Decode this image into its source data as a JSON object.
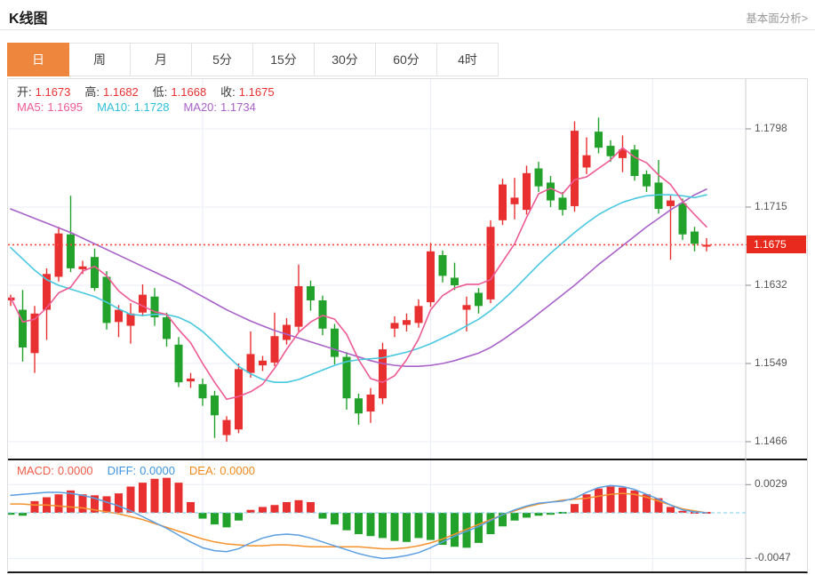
{
  "header": {
    "title": "K线图",
    "link_label": "基本面分析>"
  },
  "tabs": {
    "items": [
      "日",
      "周",
      "月",
      "5分",
      "15分",
      "30分",
      "60分",
      "4时"
    ],
    "active_index": 0
  },
  "info": {
    "ohlc": [
      {
        "label": "开:",
        "value": "1.1673"
      },
      {
        "label": "高:",
        "value": "1.1682"
      },
      {
        "label": "低:",
        "value": "1.1668"
      },
      {
        "label": "收:",
        "value": "1.1675"
      }
    ],
    "ma": [
      {
        "label": "MA5:",
        "value": "1.1695",
        "color": "#ee5a94"
      },
      {
        "label": "MA10:",
        "value": "1.1728",
        "color": "#2ec0da"
      },
      {
        "label": "MA20:",
        "value": "1.1734",
        "color": "#a862c8"
      }
    ],
    "macd": [
      {
        "label": "MACD:",
        "value": "0.0000",
        "color": "#f25c4a"
      },
      {
        "label": "DIFF:",
        "value": "0.0000",
        "color": "#3f94e0"
      },
      {
        "label": "DEA:",
        "value": "0.0000",
        "color": "#f08a1d"
      }
    ]
  },
  "colors": {
    "up": "#e93030",
    "down": "#22a12b",
    "ma5": "#ee5a94",
    "ma10": "#49c8e0",
    "ma20": "#a862c8",
    "diff": "#5b9fe0",
    "dea": "#f5922e",
    "tab_accent": "#ef863e",
    "price_line": "#fa463c",
    "badge_bg": "#e8291d",
    "grid": "#e9eef6",
    "axis_border": "#cccccc",
    "zero_dash": "#7fcbe8",
    "separator": "#151515"
  },
  "chart_data": {
    "type": "candlestick+macd",
    "title": "K线图",
    "period_selected": "日",
    "price_axis": {
      "ticks": [
        1.1798,
        1.1715,
        1.1632,
        1.1549,
        1.1466
      ],
      "current_price": 1.1675
    },
    "macd_axis": {
      "ticks": [
        0.0029,
        -0.0047
      ],
      "zero": 0
    },
    "vgrid_indices": [
      16,
      35,
      53.5
    ],
    "candles": [
      {
        "o": 1.1616,
        "h": 1.1622,
        "l": 1.161,
        "c": 1.1619
      },
      {
        "o": 1.1606,
        "h": 1.1627,
        "l": 1.1551,
        "c": 1.1566
      },
      {
        "o": 1.156,
        "h": 1.161,
        "l": 1.1539,
        "c": 1.1602
      },
      {
        "o": 1.1606,
        "h": 1.165,
        "l": 1.1574,
        "c": 1.1644
      },
      {
        "o": 1.1641,
        "h": 1.1694,
        "l": 1.1636,
        "c": 1.1687
      },
      {
        "o": 1.1686,
        "h": 1.1727,
        "l": 1.1646,
        "c": 1.165
      },
      {
        "o": 1.1649,
        "h": 1.1658,
        "l": 1.1644,
        "c": 1.1652
      },
      {
        "o": 1.1662,
        "h": 1.1671,
        "l": 1.1626,
        "c": 1.1629
      },
      {
        "o": 1.1641,
        "h": 1.1647,
        "l": 1.1585,
        "c": 1.1592
      },
      {
        "o": 1.1593,
        "h": 1.1611,
        "l": 1.1577,
        "c": 1.1606
      },
      {
        "o": 1.1589,
        "h": 1.1613,
        "l": 1.157,
        "c": 1.1602
      },
      {
        "o": 1.1603,
        "h": 1.1633,
        "l": 1.1599,
        "c": 1.1622
      },
      {
        "o": 1.162,
        "h": 1.1629,
        "l": 1.1589,
        "c": 1.1598
      },
      {
        "o": 1.1598,
        "h": 1.1603,
        "l": 1.1567,
        "c": 1.1575
      },
      {
        "o": 1.1569,
        "h": 1.1577,
        "l": 1.1524,
        "c": 1.1529
      },
      {
        "o": 1.153,
        "h": 1.1539,
        "l": 1.1523,
        "c": 1.1533
      },
      {
        "o": 1.1527,
        "h": 1.1533,
        "l": 1.1504,
        "c": 1.1512
      },
      {
        "o": 1.1515,
        "h": 1.152,
        "l": 1.147,
        "c": 1.1494
      },
      {
        "o": 1.1473,
        "h": 1.1493,
        "l": 1.1466,
        "c": 1.1489
      },
      {
        "o": 1.1479,
        "h": 1.1549,
        "l": 1.1475,
        "c": 1.1543
      },
      {
        "o": 1.1539,
        "h": 1.1583,
        "l": 1.1534,
        "c": 1.1559
      },
      {
        "o": 1.1547,
        "h": 1.1557,
        "l": 1.1541,
        "c": 1.1552
      },
      {
        "o": 1.155,
        "h": 1.1603,
        "l": 1.1546,
        "c": 1.1578
      },
      {
        "o": 1.1574,
        "h": 1.1597,
        "l": 1.1569,
        "c": 1.159
      },
      {
        "o": 1.1588,
        "h": 1.1654,
        "l": 1.1583,
        "c": 1.1631
      },
      {
        "o": 1.1631,
        "h": 1.1637,
        "l": 1.1605,
        "c": 1.1616
      },
      {
        "o": 1.1616,
        "h": 1.1621,
        "l": 1.1579,
        "c": 1.1586
      },
      {
        "o": 1.1586,
        "h": 1.1591,
        "l": 1.1548,
        "c": 1.1556
      },
      {
        "o": 1.1556,
        "h": 1.1561,
        "l": 1.15,
        "c": 1.1512
      },
      {
        "o": 1.1512,
        "h": 1.1517,
        "l": 1.1484,
        "c": 1.1496
      },
      {
        "o": 1.1498,
        "h": 1.1523,
        "l": 1.1486,
        "c": 1.1516
      },
      {
        "o": 1.1512,
        "h": 1.1571,
        "l": 1.1506,
        "c": 1.1564
      },
      {
        "o": 1.1586,
        "h": 1.1599,
        "l": 1.1577,
        "c": 1.1592
      },
      {
        "o": 1.159,
        "h": 1.1602,
        "l": 1.1583,
        "c": 1.1595
      },
      {
        "o": 1.1592,
        "h": 1.1617,
        "l": 1.1587,
        "c": 1.161
      },
      {
        "o": 1.1614,
        "h": 1.1677,
        "l": 1.1609,
        "c": 1.1668
      },
      {
        "o": 1.1664,
        "h": 1.1669,
        "l": 1.1635,
        "c": 1.1642
      },
      {
        "o": 1.164,
        "h": 1.1656,
        "l": 1.1627,
        "c": 1.1632
      },
      {
        "o": 1.1606,
        "h": 1.162,
        "l": 1.1583,
        "c": 1.1611
      },
      {
        "o": 1.1624,
        "h": 1.1629,
        "l": 1.1602,
        "c": 1.161
      },
      {
        "o": 1.1617,
        "h": 1.1701,
        "l": 1.1613,
        "c": 1.1694
      },
      {
        "o": 1.1701,
        "h": 1.1745,
        "l": 1.1696,
        "c": 1.1739
      },
      {
        "o": 1.1718,
        "h": 1.1746,
        "l": 1.1702,
        "c": 1.1725
      },
      {
        "o": 1.1712,
        "h": 1.1759,
        "l": 1.1707,
        "c": 1.1751
      },
      {
        "o": 1.1756,
        "h": 1.1763,
        "l": 1.1731,
        "c": 1.1737
      },
      {
        "o": 1.1741,
        "h": 1.1748,
        "l": 1.1715,
        "c": 1.1722
      },
      {
        "o": 1.1725,
        "h": 1.1731,
        "l": 1.1706,
        "c": 1.1712
      },
      {
        "o": 1.1716,
        "h": 1.1806,
        "l": 1.171,
        "c": 1.1796
      },
      {
        "o": 1.1757,
        "h": 1.1789,
        "l": 1.175,
        "c": 1.177
      },
      {
        "o": 1.1795,
        "h": 1.181,
        "l": 1.1772,
        "c": 1.1778
      },
      {
        "o": 1.178,
        "h": 1.1786,
        "l": 1.1763,
        "c": 1.1769
      },
      {
        "o": 1.1767,
        "h": 1.1791,
        "l": 1.1752,
        "c": 1.1776
      },
      {
        "o": 1.1776,
        "h": 1.1781,
        "l": 1.1743,
        "c": 1.1748
      },
      {
        "o": 1.175,
        "h": 1.1754,
        "l": 1.1731,
        "c": 1.1737
      },
      {
        "o": 1.1741,
        "h": 1.1765,
        "l": 1.1708,
        "c": 1.1713
      },
      {
        "o": 1.1716,
        "h": 1.1728,
        "l": 1.1659,
        "c": 1.1722
      },
      {
        "o": 1.1719,
        "h": 1.1724,
        "l": 1.168,
        "c": 1.1686
      },
      {
        "o": 1.1689,
        "h": 1.1694,
        "l": 1.1668,
        "c": 1.1676
      },
      {
        "o": 1.1673,
        "h": 1.1682,
        "l": 1.1668,
        "c": 1.1675
      }
    ],
    "ma5": [
      1.1619,
      1.1593,
      1.1596,
      1.1608,
      1.1624,
      1.163,
      1.1647,
      1.1652,
      1.1642,
      1.1626,
      1.1616,
      1.161,
      1.1604,
      1.1601,
      1.1585,
      1.1571,
      1.1549,
      1.1529,
      1.1511,
      1.1514,
      1.1519,
      1.1527,
      1.1544,
      1.1564,
      1.1582,
      1.1593,
      1.16,
      1.1596,
      1.158,
      1.1553,
      1.1533,
      1.1529,
      1.1536,
      1.1553,
      1.1575,
      1.1606,
      1.1621,
      1.1629,
      1.1633,
      1.1633,
      1.1638,
      1.1657,
      1.1676,
      1.1704,
      1.1729,
      1.1735,
      1.1729,
      1.1744,
      1.1747,
      1.1756,
      1.1765,
      1.1778,
      1.1768,
      1.1762,
      1.1749,
      1.1739,
      1.1721,
      1.1707,
      1.1694
    ],
    "ma10": [
      1.1672,
      1.166,
      1.1648,
      1.1638,
      1.1632,
      1.1628,
      1.1624,
      1.162,
      1.1614,
      1.1607,
      1.1601,
      1.16,
      1.1601,
      1.1601,
      1.1598,
      1.1592,
      1.1583,
      1.1571,
      1.1558,
      1.1546,
      1.1538,
      1.1532,
      1.1529,
      1.1529,
      1.1532,
      1.1537,
      1.1542,
      1.1547,
      1.1551,
      1.1553,
      1.1554,
      1.1555,
      1.1558,
      1.1561,
      1.1565,
      1.157,
      1.1576,
      1.1582,
      1.1589,
      1.1596,
      1.1605,
      1.1616,
      1.1628,
      1.1641,
      1.1654,
      1.1666,
      1.1677,
      1.1688,
      1.1698,
      1.1707,
      1.1714,
      1.172,
      1.1724,
      1.1727,
      1.1728,
      1.1728,
      1.1727,
      1.1725,
      1.1728
    ],
    "ma20": [
      1.1713,
      1.1708,
      1.1703,
      1.1698,
      1.1693,
      1.1688,
      1.1682,
      1.1676,
      1.167,
      1.1664,
      1.1658,
      1.1652,
      1.1646,
      1.164,
      1.1634,
      1.1627,
      1.162,
      1.1613,
      1.1606,
      1.16,
      1.1594,
      1.1589,
      1.1584,
      1.158,
      1.1576,
      1.1572,
      1.1568,
      1.1564,
      1.156,
      1.1556,
      1.1552,
      1.1549,
      1.1547,
      1.1546,
      1.1546,
      1.1547,
      1.1549,
      1.1552,
      1.1556,
      1.156,
      1.1566,
      1.1574,
      1.1583,
      1.1592,
      1.1602,
      1.1612,
      1.1622,
      1.1632,
      1.1643,
      1.1654,
      1.1664,
      1.1674,
      1.1684,
      1.1694,
      1.1703,
      1.1712,
      1.172,
      1.1728,
      1.1734
    ],
    "macd": {
      "hist": [
        -0.0002,
        -0.0003,
        0.0012,
        0.0016,
        0.0019,
        0.0023,
        0.0019,
        0.0018,
        0.0017,
        0.002,
        0.0027,
        0.0031,
        0.0035,
        0.0036,
        0.0031,
        0.0011,
        -0.0006,
        -0.0012,
        -0.0015,
        -0.0008,
        0.0003,
        0.0006,
        0.0008,
        0.0011,
        0.0013,
        0.0011,
        -0.0006,
        -0.0012,
        -0.0018,
        -0.0022,
        -0.0024,
        -0.0026,
        -0.0029,
        -0.003,
        -0.0026,
        -0.0028,
        -0.0033,
        -0.0035,
        -0.0036,
        -0.0031,
        -0.0022,
        -0.0014,
        -0.0008,
        -0.0005,
        -0.0003,
        -0.0002,
        -0.0001,
        0.0009,
        0.0019,
        0.0025,
        0.0027,
        0.0026,
        0.0023,
        0.0019,
        0.0015,
        0.0006,
        0.0002,
        0.0001,
        0
      ],
      "diff": [
        0.0018,
        0.0019,
        0.002,
        0.0021,
        0.0021,
        0.002,
        0.0018,
        0.0015,
        0.0011,
        0.0007,
        0.0002,
        -0.0004,
        -0.001,
        -0.0016,
        -0.0023,
        -0.003,
        -0.0036,
        -0.0039,
        -0.004,
        -0.0037,
        -0.0031,
        -0.0026,
        -0.0023,
        -0.0022,
        -0.0023,
        -0.0026,
        -0.003,
        -0.0034,
        -0.0038,
        -0.0042,
        -0.0045,
        -0.0047,
        -0.0046,
        -0.0044,
        -0.0041,
        -0.0036,
        -0.003,
        -0.0024,
        -0.0019,
        -0.0014,
        -0.0008,
        -0.0002,
        0.0003,
        0.0007,
        0.001,
        0.0011,
        0.0012,
        0.0015,
        0.0021,
        0.0026,
        0.0028,
        0.0027,
        0.0024,
        0.0019,
        0.0014,
        0.0008,
        0.0003,
        0.0001,
        0
      ],
      "dea": [
        0.0009,
        0.0009,
        0.0008,
        0.0008,
        0.0007,
        0.0006,
        0.0005,
        0.0003,
        0.0001,
        -0.0001,
        -0.0004,
        -0.0007,
        -0.0011,
        -0.0015,
        -0.0019,
        -0.0023,
        -0.0027,
        -0.003,
        -0.0032,
        -0.0033,
        -0.0034,
        -0.0034,
        -0.0033,
        -0.0033,
        -0.0034,
        -0.0035,
        -0.0035,
        -0.0035,
        -0.0035,
        -0.0035,
        -0.0036,
        -0.0037,
        -0.0037,
        -0.0036,
        -0.0034,
        -0.0031,
        -0.0027,
        -0.0022,
        -0.0017,
        -0.0012,
        -0.0007,
        -0.0002,
        0.0002,
        0.0006,
        0.0009,
        0.0011,
        0.0013,
        0.0014,
        0.0015,
        0.0017,
        0.0019,
        0.002,
        0.0019,
        0.0016,
        0.0012,
        0.0008,
        0.0004,
        0.0002,
        0
      ]
    }
  }
}
